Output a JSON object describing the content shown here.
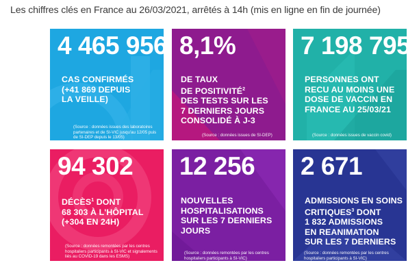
{
  "header": "Les chiffres clés en France au 26/03/2021, arrêtés à 14h (mis en ligne en fin de journée)",
  "colors": {
    "cyan": "#1ea7e1",
    "purple": "#86198f",
    "teal": "#21b1a8",
    "pink": "#ea1d62",
    "violet": "#7b1fa2",
    "blue": "#283593"
  },
  "tiles": [
    {
      "value": "4 465 956",
      "lines": [
        "CAS CONFIRMÉS",
        "(+41 869 DEPUIS",
        "LA VEILLE)"
      ],
      "source": "(Source : données issues des laboratoires partenaires et de SI-VIC jusqu'au 12/05 puis de SI-DEP depuis le 13/05)"
    },
    {
      "value": "8,1%",
      "lines": [
        "DE TAUX",
        "DE POSITIVITÉ",
        "DES TESTS SUR LES",
        "7 DERNIERS JOURS",
        "CONSOLIDÉ À J-3"
      ],
      "line2_sup": "2",
      "source": "(Source : données issues de SI-DEP)"
    },
    {
      "value": "7 198 795",
      "lines": [
        "PERSONNES ONT",
        "RECU AU MOINS UNE",
        "DOSE DE VACCIN EN",
        "FRANCE AU 25/03/21"
      ],
      "source": "(Source : données issues de vaccin covid)"
    },
    {
      "value": "94 302",
      "lines": [
        "DÉCÈS",
        "68 303 À L'HÔPITAL",
        "(+304 EN 24H)"
      ],
      "line1_sup": "1",
      "line1_after": " DONT",
      "source": "(Source : données remontées par les centres hospitaliers participants à SI-VIC et signalements liés au COVID-19 dans les ESMS)"
    },
    {
      "value": "12 256",
      "lines": [
        "NOUVELLES",
        "HOSPITALISATIONS",
        "SUR LES 7 DERNIERS",
        "JOURS"
      ],
      "source": "(Source : données remontées par les centres hospitaliers participants à SI-VIC)"
    },
    {
      "value": "2 671",
      "lines": [
        "ADMISSIONS EN SOINS",
        "CRITIQUES",
        "1 832 ADMISSIONS",
        "EN REANIMATION",
        "SUR LES 7 DERNIERS"
      ],
      "line2_sup": "3",
      "line2_after": " DONT",
      "source": "(Source : données remontées par les centres hospitaliers participants à SI-VIC)"
    }
  ]
}
